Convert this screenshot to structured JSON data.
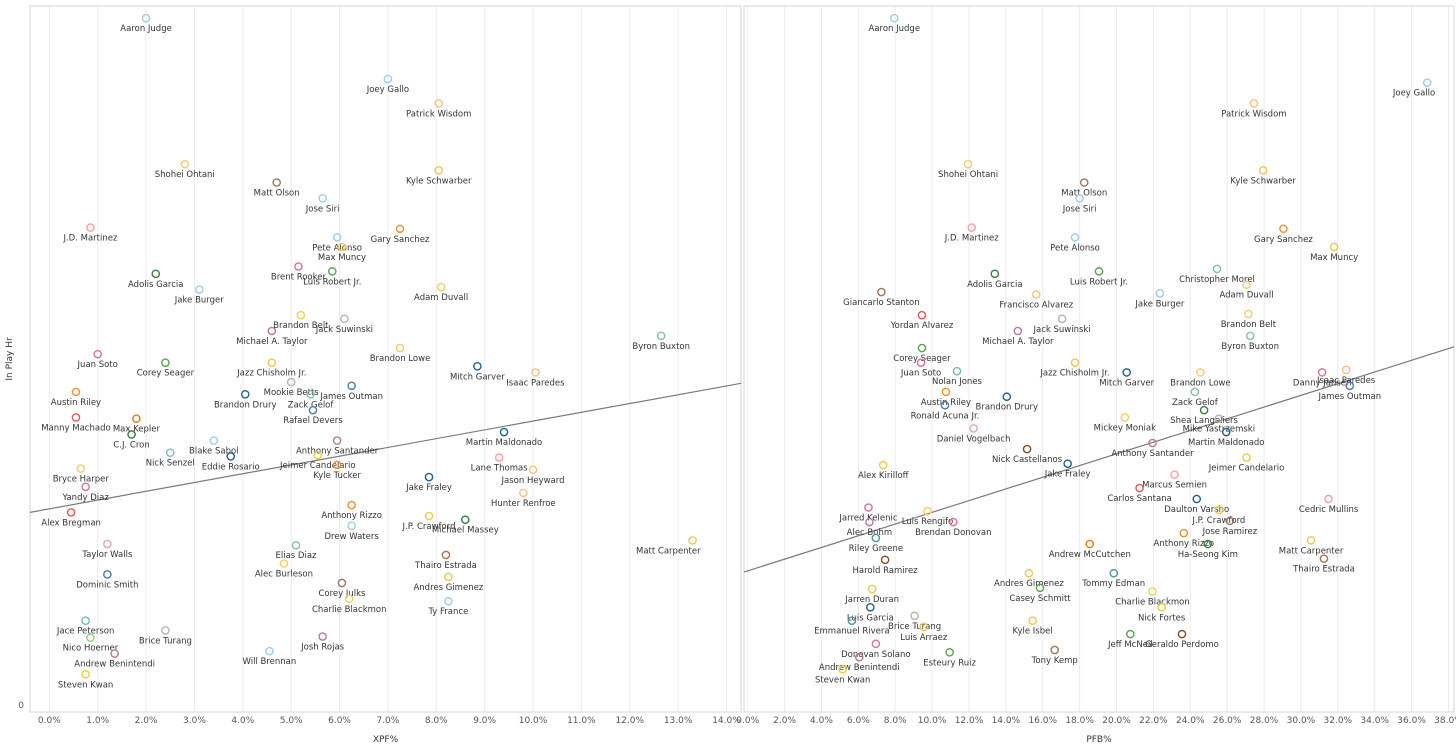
{
  "palette": [
    "#4e79a7",
    "#f28e2b",
    "#e15759",
    "#59a14f",
    "#edc948",
    "#b07aa1",
    "#ff9da7",
    "#9c755f",
    "#bab0ac",
    "#76b7b2",
    "#1f5f8b",
    "#d37295",
    "#a0cbe8",
    "#ffbe7d",
    "#8cd17d",
    "#499894",
    "#86bcb6",
    "#f1ce63",
    "#d4a6c8",
    "#e17c05",
    "#7b4f2c",
    "#3a7d44"
  ],
  "chart_data": [
    {
      "type": "scatter",
      "title": "",
      "xlabel": "XPF%",
      "ylabel": "In Play Hr",
      "xlim": [
        -0.004,
        0.143
      ],
      "ylim": [
        0,
        58
      ],
      "x_ticks": [
        "0.0%",
        "1.0%",
        "2.0%",
        "3.0%",
        "4.0%",
        "5.0%",
        "6.0%",
        "7.0%",
        "8.0%",
        "9.0%",
        "10.0%",
        "11.0%",
        "12.0%",
        "13.0%",
        "14.0%"
      ],
      "x_tick_values": [
        0,
        0.01,
        0.02,
        0.03,
        0.04,
        0.05,
        0.06,
        0.07,
        0.08,
        0.09,
        0.1,
        0.11,
        0.12,
        0.13,
        0.14
      ],
      "y_ticks": [
        "0"
      ],
      "grid": "vertical",
      "trendline": {
        "x": [
          -0.004,
          0.143
        ],
        "y": [
          16.4,
          27.0
        ]
      },
      "points": [
        {
          "name": "Aaron Judge",
          "x": 0.02,
          "y": 57
        },
        {
          "name": "Joey Gallo",
          "x": 0.07,
          "y": 52
        },
        {
          "name": "Patrick Wisdom",
          "x": 0.0805,
          "y": 50
        },
        {
          "name": "Shohei Ohtani",
          "x": 0.028,
          "y": 45
        },
        {
          "name": "Kyle Schwarber",
          "x": 0.0805,
          "y": 44.5
        },
        {
          "name": "Matt Olson",
          "x": 0.047,
          "y": 43.5
        },
        {
          "name": "Jose Siri",
          "x": 0.0565,
          "y": 42.2
        },
        {
          "name": "J.D. Martinez",
          "x": 0.0085,
          "y": 39.8
        },
        {
          "name": "Gary Sanchez",
          "x": 0.0725,
          "y": 39.7
        },
        {
          "name": "Pete Alonso",
          "x": 0.0595,
          "y": 39
        },
        {
          "name": "Max Muncy",
          "x": 0.0605,
          "y": 38.2
        },
        {
          "name": "Brent Rooker",
          "x": 0.0515,
          "y": 36.6
        },
        {
          "name": "Adolis Garcia",
          "x": 0.022,
          "y": 36
        },
        {
          "name": "Luis Robert Jr.",
          "x": 0.0585,
          "y": 36.2
        },
        {
          "name": "Adam Duvall",
          "x": 0.081,
          "y": 34.9
        },
        {
          "name": "Jake Burger",
          "x": 0.031,
          "y": 34.7
        },
        {
          "name": "Brandon Belt",
          "x": 0.052,
          "y": 32.6
        },
        {
          "name": "Jack Suwinski",
          "x": 0.061,
          "y": 32.3
        },
        {
          "name": "Michael A. Taylor",
          "x": 0.046,
          "y": 31.3
        },
        {
          "name": "Juan Soto",
          "x": 0.01,
          "y": 29.4
        },
        {
          "name": "Corey Seager",
          "x": 0.024,
          "y": 28.7
        },
        {
          "name": "Jazz Chisholm Jr.",
          "x": 0.046,
          "y": 28.7
        },
        {
          "name": "Brandon Lowe",
          "x": 0.0725,
          "y": 29.9
        },
        {
          "name": "Byron Buxton",
          "x": 0.1265,
          "y": 30.9
        },
        {
          "name": "Mitch Garver",
          "x": 0.0885,
          "y": 28.4
        },
        {
          "name": "Isaac Paredes",
          "x": 0.1005,
          "y": 27.9
        },
        {
          "name": "Austin Riley",
          "x": 0.0055,
          "y": 26.3
        },
        {
          "name": "Mookie Betts",
          "x": 0.05,
          "y": 27.1
        },
        {
          "name": "James Outman",
          "x": 0.0625,
          "y": 26.8
        },
        {
          "name": "Brandon Drury",
          "x": 0.0405,
          "y": 26.1
        },
        {
          "name": "Zack Gelof",
          "x": 0.054,
          "y": 26.1
        },
        {
          "name": "Rafael Devers",
          "x": 0.0545,
          "y": 24.8
        },
        {
          "name": "Manny Machado",
          "x": 0.0055,
          "y": 24.2
        },
        {
          "name": "Max Kepler",
          "x": 0.018,
          "y": 24.1
        },
        {
          "name": "C.J. Cron",
          "x": 0.017,
          "y": 22.8
        },
        {
          "name": "Blake Sabol",
          "x": 0.034,
          "y": 22.3
        },
        {
          "name": "Anthony Santander",
          "x": 0.0595,
          "y": 22.3
        },
        {
          "name": "Martin Maldonado",
          "x": 0.094,
          "y": 23.0
        },
        {
          "name": "Nick Senzel",
          "x": 0.025,
          "y": 21.3
        },
        {
          "name": "Eddie Rosario",
          "x": 0.0375,
          "y": 21
        },
        {
          "name": "Jeimer Candelario",
          "x": 0.0555,
          "y": 21.1
        },
        {
          "name": "Lane Thomas",
          "x": 0.093,
          "y": 20.9
        },
        {
          "name": "Kyle Tucker",
          "x": 0.0595,
          "y": 20.3
        },
        {
          "name": "Bryce Harper",
          "x": 0.0065,
          "y": 20.0
        },
        {
          "name": "Jason Heyward",
          "x": 0.1,
          "y": 19.9
        },
        {
          "name": "Jake Fraley",
          "x": 0.0785,
          "y": 19.3
        },
        {
          "name": "Yandy Diaz",
          "x": 0.0075,
          "y": 18.5
        },
        {
          "name": "Hunter Renfroe",
          "x": 0.098,
          "y": 18.0
        },
        {
          "name": "Alex Bregman",
          "x": 0.0045,
          "y": 16.4
        },
        {
          "name": "Anthony Rizzo",
          "x": 0.0625,
          "y": 17.0
        },
        {
          "name": "J.P. Crawford",
          "x": 0.0785,
          "y": 16.1
        },
        {
          "name": "Michael Massey",
          "x": 0.086,
          "y": 15.8
        },
        {
          "name": "Drew Waters",
          "x": 0.0625,
          "y": 15.3
        },
        {
          "name": "Taylor Walls",
          "x": 0.012,
          "y": 13.8
        },
        {
          "name": "Elias Diaz",
          "x": 0.051,
          "y": 13.7
        },
        {
          "name": "Matt Carpenter",
          "x": 0.133,
          "y": 14.1
        },
        {
          "name": "Thairo Estrada",
          "x": 0.082,
          "y": 12.9
        },
        {
          "name": "Dominic Smith",
          "x": 0.012,
          "y": 11.3
        },
        {
          "name": "Alec Burleson",
          "x": 0.0485,
          "y": 12.2
        },
        {
          "name": "Andres Gimenez",
          "x": 0.0825,
          "y": 11.1
        },
        {
          "name": "Corey Julks",
          "x": 0.0605,
          "y": 10.6
        },
        {
          "name": "Charlie Blackmon",
          "x": 0.062,
          "y": 9.3
        },
        {
          "name": "Ty France",
          "x": 0.0825,
          "y": 9.1
        },
        {
          "name": "Jace Peterson",
          "x": 0.0075,
          "y": 7.5
        },
        {
          "name": "Brice Turang",
          "x": 0.024,
          "y": 6.7
        },
        {
          "name": "Nico Hoerner",
          "x": 0.0085,
          "y": 6.1
        },
        {
          "name": "Josh Rojas",
          "x": 0.0565,
          "y": 6.2
        },
        {
          "name": "Andrew Benintendi",
          "x": 0.0135,
          "y": 4.8
        },
        {
          "name": "Will Brennan",
          "x": 0.0455,
          "y": 5.0
        },
        {
          "name": "Steven Kwan",
          "x": 0.0075,
          "y": 3.1
        }
      ]
    },
    {
      "type": "scatter",
      "title": "",
      "xlabel": "PFB%",
      "ylabel": "",
      "xlim": [
        -0.002,
        0.383
      ],
      "ylim": [
        0,
        58
      ],
      "x_ticks": [
        "0.0%",
        "2.0%",
        "4.0%",
        "6.0%",
        "8.0%",
        "10.0%",
        "12.0%",
        "14.0%",
        "16.0%",
        "18.0%",
        "20.0%",
        "22.0%",
        "24.0%",
        "26.0%",
        "28.0%",
        "30.0%",
        "32.0%",
        "34.0%",
        "36.0%",
        "38.0%"
      ],
      "x_tick_values": [
        0,
        0.02,
        0.04,
        0.06,
        0.08,
        0.1,
        0.12,
        0.14,
        0.16,
        0.18,
        0.2,
        0.22,
        0.24,
        0.26,
        0.28,
        0.3,
        0.32,
        0.34,
        0.36,
        0.38
      ],
      "y_ticks": [],
      "grid": "vertical",
      "trendline": {
        "x": [
          -0.002,
          0.383
        ],
        "y": [
          11.5,
          30.0
        ]
      },
      "points": [
        {
          "name": "Aaron Judge",
          "x": 0.0795,
          "y": 57
        },
        {
          "name": "Joey Gallo",
          "x": 0.3685,
          "y": 51.7
        },
        {
          "name": "Patrick Wisdom",
          "x": 0.2745,
          "y": 50
        },
        {
          "name": "Shohei Ohtani",
          "x": 0.1195,
          "y": 45
        },
        {
          "name": "Kyle Schwarber",
          "x": 0.2795,
          "y": 44.5
        },
        {
          "name": "Matt Olson",
          "x": 0.1825,
          "y": 43.5
        },
        {
          "name": "Jose Siri",
          "x": 0.18,
          "y": 42.2
        },
        {
          "name": "J.D. Martinez",
          "x": 0.1215,
          "y": 39.8
        },
        {
          "name": "Gary Sanchez",
          "x": 0.2905,
          "y": 39.7
        },
        {
          "name": "Pete Alonso",
          "x": 0.1775,
          "y": 39.0
        },
        {
          "name": "Max Muncy",
          "x": 0.318,
          "y": 38.2
        },
        {
          "name": "Adolis Garcia",
          "x": 0.134,
          "y": 36
        },
        {
          "name": "Luis Robert Jr.",
          "x": 0.1905,
          "y": 36.2
        },
        {
          "name": "Christopher Morel",
          "x": 0.2545,
          "y": 36.4
        },
        {
          "name": "Adam Duvall",
          "x": 0.2705,
          "y": 35.1
        },
        {
          "name": "Jake Burger",
          "x": 0.2235,
          "y": 34.4
        },
        {
          "name": "Giancarlo Stanton",
          "x": 0.0725,
          "y": 34.5
        },
        {
          "name": "Francisco Alvarez",
          "x": 0.1565,
          "y": 34.3
        },
        {
          "name": "Brandon Belt",
          "x": 0.2715,
          "y": 32.7
        },
        {
          "name": "Yordan Alvarez",
          "x": 0.0945,
          "y": 32.6
        },
        {
          "name": "Jack Suwinski",
          "x": 0.1705,
          "y": 32.3
        },
        {
          "name": "Michael A. Taylor",
          "x": 0.1465,
          "y": 31.3
        },
        {
          "name": "Byron Buxton",
          "x": 0.2725,
          "y": 30.9
        },
        {
          "name": "Corey Seager",
          "x": 0.0945,
          "y": 29.9
        },
        {
          "name": "Juan Soto",
          "x": 0.094,
          "y": 28.7
        },
        {
          "name": "Nolan Jones",
          "x": 0.1135,
          "y": 28
        },
        {
          "name": "Jazz Chisholm Jr.",
          "x": 0.1775,
          "y": 28.7
        },
        {
          "name": "Brandon Lowe",
          "x": 0.2455,
          "y": 27.9
        },
        {
          "name": "Mitch Garver",
          "x": 0.2055,
          "y": 27.9
        },
        {
          "name": "Danny Jansen",
          "x": 0.3115,
          "y": 27.9
        },
        {
          "name": "Isaac Paredes",
          "x": 0.3245,
          "y": 28.1
        },
        {
          "name": "Austin Riley",
          "x": 0.1075,
          "y": 26.3
        },
        {
          "name": "Brandon Drury",
          "x": 0.1405,
          "y": 25.9
        },
        {
          "name": "Zack Gelof",
          "x": 0.2425,
          "y": 26.3
        },
        {
          "name": "James Outman",
          "x": 0.3265,
          "y": 26.8
        },
        {
          "name": "Ronald Acuna Jr.",
          "x": 0.107,
          "y": 25.2
        },
        {
          "name": "Shea Langeliers",
          "x": 0.2475,
          "y": 24.8
        },
        {
          "name": "Mickey Moniak",
          "x": 0.2045,
          "y": 24.2
        },
        {
          "name": "Mike Yastrzemski",
          "x": 0.2555,
          "y": 24.1
        },
        {
          "name": "Daniel Vogelbach",
          "x": 0.1225,
          "y": 23.3
        },
        {
          "name": "Martin Maldonado",
          "x": 0.2595,
          "y": 23.0
        },
        {
          "name": "Anthony Santander",
          "x": 0.2195,
          "y": 22.1
        },
        {
          "name": "Nick Castellanos",
          "x": 0.1515,
          "y": 21.6
        },
        {
          "name": "Jeimer Candelario",
          "x": 0.2705,
          "y": 20.9
        },
        {
          "name": "Alex Kirilloff",
          "x": 0.0735,
          "y": 20.3
        },
        {
          "name": "Jake Fraley",
          "x": 0.1735,
          "y": 20.4
        },
        {
          "name": "Marcus Semien",
          "x": 0.2315,
          "y": 19.5
        },
        {
          "name": "Carlos Santana",
          "x": 0.2125,
          "y": 18.4
        },
        {
          "name": "Daulton Varsho",
          "x": 0.2435,
          "y": 17.5
        },
        {
          "name": "Cedric Mullins",
          "x": 0.315,
          "y": 17.5
        },
        {
          "name": "Jarred Kelenic",
          "x": 0.0655,
          "y": 16.8
        },
        {
          "name": "Luis Rengifo",
          "x": 0.0975,
          "y": 16.5
        },
        {
          "name": "J.P. Crawford",
          "x": 0.2555,
          "y": 16.6
        },
        {
          "name": "Alec Bohm",
          "x": 0.066,
          "y": 15.6
        },
        {
          "name": "Brendan Donovan",
          "x": 0.1115,
          "y": 15.6
        },
        {
          "name": "Jose Ramirez",
          "x": 0.2615,
          "y": 15.7
        },
        {
          "name": "Riley Greene",
          "x": 0.0695,
          "y": 14.3
        },
        {
          "name": "Anthony Rizzo",
          "x": 0.2365,
          "y": 14.7
        },
        {
          "name": "Andrew McCutchen",
          "x": 0.1855,
          "y": 13.8
        },
        {
          "name": "Ha-Seong Kim",
          "x": 0.2495,
          "y": 13.8
        },
        {
          "name": "Matt Carpenter",
          "x": 0.3055,
          "y": 14.1
        },
        {
          "name": "Harold Ramirez",
          "x": 0.0745,
          "y": 12.5
        },
        {
          "name": "Thairo Estrada",
          "x": 0.3125,
          "y": 12.6
        },
        {
          "name": "Andres Gimenez",
          "x": 0.1525,
          "y": 11.4
        },
        {
          "name": "Tommy Edman",
          "x": 0.1985,
          "y": 11.4
        },
        {
          "name": "Casey Schmitt",
          "x": 0.1585,
          "y": 10.2
        },
        {
          "name": "Jarren Duran",
          "x": 0.0675,
          "y": 10.1
        },
        {
          "name": "Charlie Blackmon",
          "x": 0.2195,
          "y": 9.9
        },
        {
          "name": "Luis Garcia",
          "x": 0.0665,
          "y": 8.6
        },
        {
          "name": "Brice Turang",
          "x": 0.0905,
          "y": 7.9
        },
        {
          "name": "Nick Fortes",
          "x": 0.2245,
          "y": 8.6
        },
        {
          "name": "Emmanuel Rivera",
          "x": 0.0565,
          "y": 7.5
        },
        {
          "name": "Kyle Isbel",
          "x": 0.1545,
          "y": 7.5
        },
        {
          "name": "Luis Arraez",
          "x": 0.0955,
          "y": 7.0
        },
        {
          "name": "Jeff McNeil",
          "x": 0.2075,
          "y": 6.4
        },
        {
          "name": "Geraldo Perdomo",
          "x": 0.2355,
          "y": 6.4
        },
        {
          "name": "Donovan Solano",
          "x": 0.0695,
          "y": 5.6
        },
        {
          "name": "Tony Kemp",
          "x": 0.1665,
          "y": 5.1
        },
        {
          "name": "Esteury Ruiz",
          "x": 0.1095,
          "y": 4.9
        },
        {
          "name": "Andrew Benintendi",
          "x": 0.0605,
          "y": 4.5
        },
        {
          "name": "Steven Kwan",
          "x": 0.0515,
          "y": 3.5
        }
      ]
    }
  ]
}
